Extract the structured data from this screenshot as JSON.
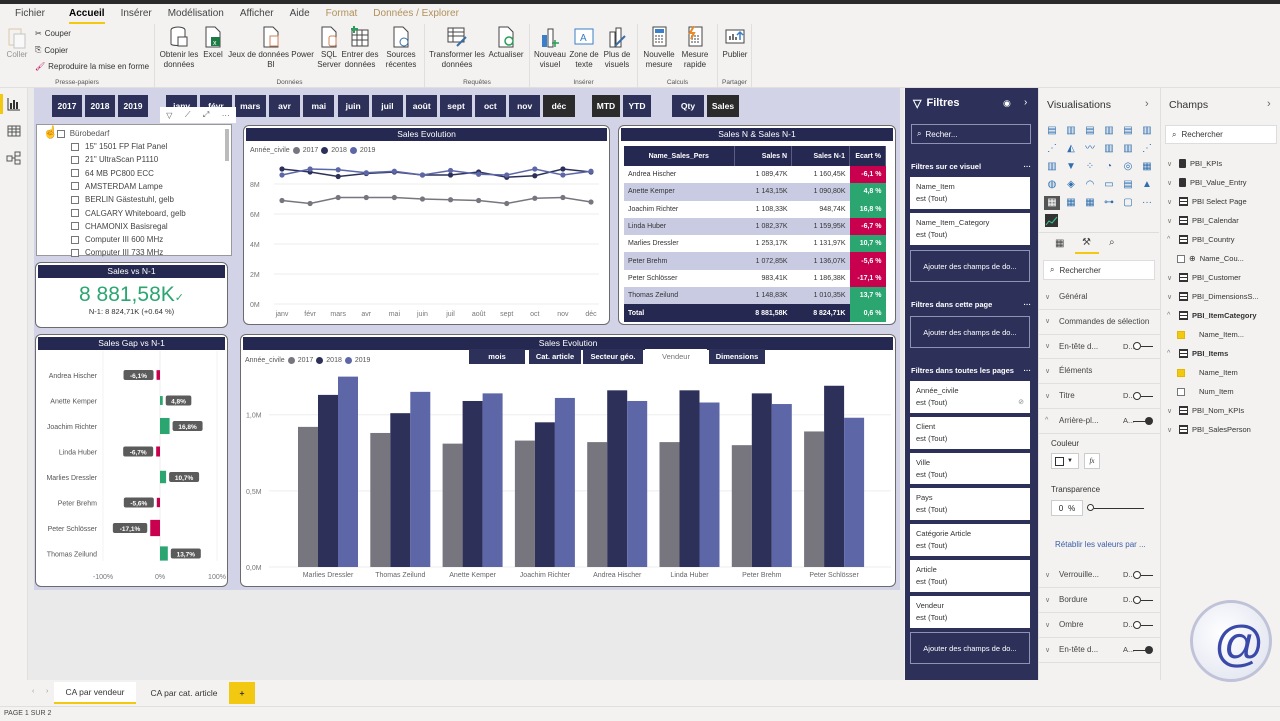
{
  "ribbon": {
    "menu_tabs": [
      "Fichier",
      "Accueil",
      "Insérer",
      "Modélisation",
      "Afficher",
      "Aide",
      "Format",
      "Données / Explorer"
    ],
    "active_tab": "Accueil",
    "clipboard": {
      "paste": "Coller",
      "cut": "Couper",
      "copy": "Copier",
      "format_painter": "Reproduire la mise en forme",
      "group": "Presse-papiers"
    },
    "data": {
      "get_data": "Obtenir les données",
      "excel": "Excel",
      "pbi_datasets": "Jeux de données Power BI",
      "sql": "SQL Server",
      "enter_data": "Entrer des données",
      "recent": "Sources récentes",
      "group": "Données"
    },
    "queries": {
      "transform": "Transformer les données",
      "refresh": "Actualiser",
      "group": "Requêtes"
    },
    "insert": {
      "new_visual": "Nouveau visuel",
      "textbox": "Zone de texte",
      "more_visuals": "Plus de visuels",
      "group": "Insérer"
    },
    "calcs": {
      "new_measure": "Nouvelle mesure",
      "quick_measure": "Mesure rapide",
      "group": "Calculs"
    },
    "share": {
      "publish": "Publier",
      "group": "Partager"
    }
  },
  "slicers": {
    "years": [
      "2017",
      "2018",
      "2019"
    ],
    "months": [
      "janv",
      "févr",
      "mars",
      "avr",
      "mai",
      "juin",
      "juil",
      "août",
      "sept",
      "oct",
      "nov",
      "déc"
    ],
    "period": [
      "MTD",
      "YTD"
    ],
    "measure": [
      "Qty",
      "Sales"
    ]
  },
  "item_slicer": {
    "category": "Bürobedarf",
    "items": [
      "15\" 1501 FP Flat Panel",
      "21\" UltraScan P1110",
      "64 MB PC800 ECC",
      "AMSTERDAM Lampe",
      "BERLIN Gästestuhl, gelb",
      "CALGARY Whiteboard, gelb",
      "CHAMONIX Basisregal",
      "Computer III 600 MHz",
      "Computer III 733 MHz"
    ]
  },
  "kpi": {
    "title": "Sales vs N-1",
    "value": "8 881,58K",
    "sub": "N-1: 8 824,71K (+0.64 %)"
  },
  "matrix": {
    "title": "Sales N & Sales N-1",
    "headers": [
      "Name_Sales_Pers",
      "Sales N",
      "Sales N-1",
      "Ecart %"
    ],
    "rows": [
      {
        "name": "Andrea Hischer",
        "n": "1 089,47K",
        "n1": "1 160,45K",
        "pct": "-6,1 %",
        "neg": true
      },
      {
        "name": "Anette Kemper",
        "n": "1 143,15K",
        "n1": "1 090,80K",
        "pct": "4,8 %",
        "neg": false
      },
      {
        "name": "Joachim Richter",
        "n": "1 108,33K",
        "n1": "948,74K",
        "pct": "16,8 %",
        "neg": false
      },
      {
        "name": "Linda Huber",
        "n": "1 082,37K",
        "n1": "1 159,95K",
        "pct": "-6,7 %",
        "neg": true
      },
      {
        "name": "Marlies Dressler",
        "n": "1 253,17K",
        "n1": "1 131,97K",
        "pct": "10,7 %",
        "neg": false
      },
      {
        "name": "Peter Brehm",
        "n": "1 072,85K",
        "n1": "1 136,07K",
        "pct": "-5,6 %",
        "neg": true
      },
      {
        "name": "Peter Schlösser",
        "n": "983,41K",
        "n1": "1 186,38K",
        "pct": "-17,1 %",
        "neg": true
      },
      {
        "name": "Thomas Zeilund",
        "n": "1 148,83K",
        "n1": "1 010,35K",
        "pct": "13,7 %",
        "neg": false
      }
    ],
    "total": {
      "name": "Total",
      "n": "8 881,58K",
      "n1": "8 824,71K",
      "pct": "0,6 %"
    }
  },
  "bar_tabs": [
    "mois",
    "Cat. article",
    "Secteur géo.",
    "Vendeur",
    "Dimensions"
  ],
  "active_bar_tab": "Vendeur",
  "colors": {
    "2017": "#77767f",
    "2018": "#2d3159",
    "2019": "#5d67a8",
    "neg": "#c8004e",
    "pos": "#2ba671",
    "header": "#252850",
    "accent": "#f2c811"
  },
  "chart_data": [
    {
      "type": "line",
      "title": "Sales Evolution",
      "legend_title": "Année_civile",
      "categories": [
        "janv",
        "févr",
        "mars",
        "avr",
        "mai",
        "juin",
        "juil",
        "août",
        "sept",
        "oct",
        "nov",
        "déc"
      ],
      "series": [
        {
          "name": "2017",
          "values": [
            6.9,
            6.7,
            7.1,
            7.1,
            7.1,
            7.0,
            6.95,
            6.9,
            6.7,
            7.05,
            7.1,
            6.8
          ]
        },
        {
          "name": "2018",
          "values": [
            9.0,
            8.8,
            8.5,
            8.7,
            8.8,
            8.6,
            8.6,
            8.8,
            8.45,
            8.55,
            9.0,
            8.8
          ]
        },
        {
          "name": "2019",
          "values": [
            8.6,
            9.0,
            8.95,
            8.75,
            8.85,
            8.6,
            8.9,
            8.65,
            8.6,
            9.0,
            8.6,
            8.85
          ]
        }
      ],
      "yticks": [
        "0M",
        "2M",
        "4M",
        "6M",
        "8M"
      ],
      "ylim": [
        0,
        10
      ]
    },
    {
      "type": "bar",
      "orientation": "horizontal",
      "title": "Sales Gap vs N-1",
      "categories": [
        "Andrea Hischer",
        "Anette Kemper",
        "Joachim Richter",
        "Linda Huber",
        "Marlies Dressler",
        "Peter Brehm",
        "Peter Schlösser",
        "Thomas Zeilund"
      ],
      "values": [
        -6.1,
        4.8,
        16.8,
        -6.7,
        10.7,
        -5.6,
        -17.1,
        13.7
      ],
      "labels": [
        "-6,1%",
        "4,8%",
        "16,8%",
        "-6,7%",
        "10,7%",
        "-5,6%",
        "-17,1%",
        "13,7%"
      ],
      "xticks": [
        "-100%",
        "0%",
        "100%"
      ],
      "xlim": [
        -100,
        100
      ]
    },
    {
      "type": "bar",
      "title": "Sales Evolution",
      "legend_title": "Année_civile",
      "categories": [
        "Marlies Dressler",
        "Thomas Zeilund",
        "Anette Kemper",
        "Joachim Richter",
        "Andrea Hischer",
        "Linda Huber",
        "Peter Brehm",
        "Peter Schlösser"
      ],
      "series": [
        {
          "name": "2017",
          "values": [
            0.92,
            0.88,
            0.81,
            0.83,
            0.82,
            0.82,
            0.8,
            0.89
          ]
        },
        {
          "name": "2018",
          "values": [
            1.13,
            1.01,
            1.09,
            0.95,
            1.16,
            1.16,
            1.14,
            1.19
          ]
        },
        {
          "name": "2019",
          "values": [
            1.25,
            1.15,
            1.14,
            1.11,
            1.09,
            1.08,
            1.07,
            0.98
          ]
        }
      ],
      "yticks": [
        "0,0M",
        "0,5M",
        "1,0M"
      ],
      "ylim": [
        0,
        1.3
      ]
    }
  ],
  "filters": {
    "title": "Filtres",
    "search": "Recher...",
    "visual_section": "Filtres sur ce visuel",
    "visual_cards": [
      {
        "field": "Name_Item",
        "state": "est (Tout)"
      },
      {
        "field": "Name_Item_Category",
        "state": "est (Tout)"
      }
    ],
    "add_label": "Ajouter des champs de do...",
    "page_section": "Filtres dans cette page",
    "all_section": "Filtres dans toutes les pages",
    "all_cards": [
      {
        "field": "Année_civile",
        "state": "est (Tout)"
      },
      {
        "field": "Client",
        "state": "est (Tout)"
      },
      {
        "field": "Ville",
        "state": "est (Tout)"
      },
      {
        "field": "Pays",
        "state": "est (Tout)"
      },
      {
        "field": "Catégorie Article",
        "state": "est (Tout)"
      },
      {
        "field": "Article",
        "state": "est (Tout)"
      },
      {
        "field": "Vendeur",
        "state": "est (Tout)"
      }
    ]
  },
  "visualizations": {
    "title": "Visualisations",
    "search": "Rechercher",
    "sections": [
      {
        "label": "Général",
        "toggle": null
      },
      {
        "label": "Commandes de sélection",
        "toggle": null
      },
      {
        "label": "En-tête d...",
        "state": "D...",
        "toggle": "off"
      },
      {
        "label": "Éléments",
        "toggle": null
      },
      {
        "label": "Titre",
        "state": "D...",
        "toggle": "off"
      },
      {
        "label": "Arrière-pl...",
        "state": "A...",
        "toggle": "on"
      }
    ],
    "color_label": "Couleur",
    "transparency_label": "Transparence",
    "transparency_value": "0",
    "pct": "%",
    "reset": "Rétablir les valeurs par ...",
    "sections2": [
      {
        "label": "Verrouille...",
        "state": "D...",
        "toggle": "off"
      },
      {
        "label": "Bordure",
        "state": "D...",
        "toggle": "off"
      },
      {
        "label": "Ombre",
        "state": "D...",
        "toggle": "off"
      },
      {
        "label": "En-tête d...",
        "state": "A...",
        "toggle": "on"
      }
    ]
  },
  "fields": {
    "title": "Champs",
    "search": "Rechercher",
    "items": [
      {
        "label": "PBI_KPIs",
        "kind": "calc",
        "level": 0,
        "expanded": false
      },
      {
        "label": "PBI_Value_Entry",
        "kind": "calc",
        "level": 0,
        "expanded": false
      },
      {
        "label": "PBI Select Page",
        "kind": "table",
        "level": 0,
        "expanded": false
      },
      {
        "label": "PBI_Calendar",
        "kind": "table",
        "level": 0,
        "expanded": false
      },
      {
        "label": "PBI_Country",
        "kind": "table",
        "level": 0,
        "expanded": true
      },
      {
        "label": "Name_Cou...",
        "kind": "field",
        "level": 1,
        "checked": false
      },
      {
        "label": "PBI_Customer",
        "kind": "table",
        "level": 0,
        "expanded": false
      },
      {
        "label": "PBI_DimensionsS...",
        "kind": "table",
        "level": 0,
        "expanded": false
      },
      {
        "label": "PBI_ItemCategory",
        "kind": "table",
        "level": 0,
        "expanded": true,
        "bold": true
      },
      {
        "label": "Name_Item...",
        "kind": "field",
        "level": 1,
        "checked": true
      },
      {
        "label": "PBI_Items",
        "kind": "table",
        "level": 0,
        "expanded": true,
        "bold": true
      },
      {
        "label": "Name_Item",
        "kind": "field",
        "level": 1,
        "checked": true
      },
      {
        "label": "Num_Item",
        "kind": "field",
        "level": 1,
        "checked": false
      },
      {
        "label": "PBI_Nom_KPIs",
        "kind": "table",
        "level": 0,
        "expanded": false
      },
      {
        "label": "PBI_SalesPerson",
        "kind": "table",
        "level": 0,
        "expanded": false
      }
    ]
  },
  "page_tabs": [
    "CA par vendeur",
    "CA par cat. article"
  ],
  "add_page": "+",
  "status": "PAGE 1 SUR 2"
}
